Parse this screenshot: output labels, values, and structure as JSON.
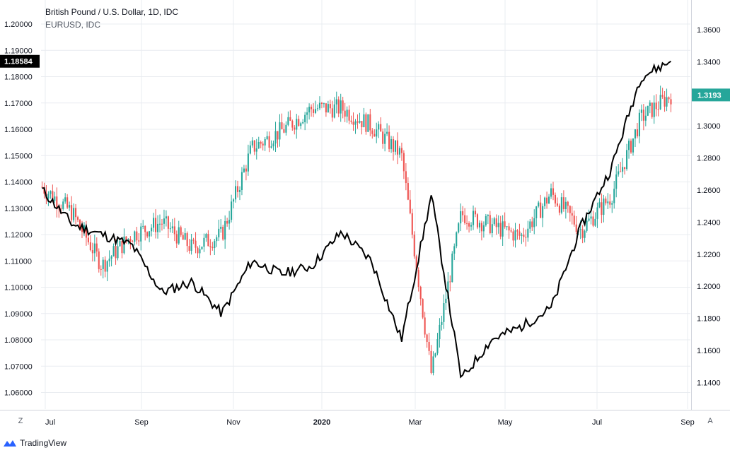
{
  "title": "British Pound / U.S. Dollar, 1D, IDC",
  "subtitle": "EURUSD, IDC",
  "brand": "TradingView",
  "zoom_button": "Z",
  "auto_button": "A",
  "colors": {
    "up": "#26a69a",
    "down": "#ef5350",
    "overlay": "#000000",
    "grid": "#e9ecf0",
    "text": "#131722"
  },
  "chart_data": {
    "type": "line",
    "x_labels": [
      "Jul",
      "Sep",
      "Nov",
      "2020",
      "Mar",
      "May",
      "Jul",
      "Sep"
    ],
    "left_axis": {
      "series": "EURUSD, IDC",
      "ticks": [
        "1.20000",
        "1.19000",
        "1.18000",
        "1.17000",
        "1.16000",
        "1.15000",
        "1.14000",
        "1.13000",
        "1.12000",
        "1.11000",
        "1.10000",
        "1.09000",
        "1.08000",
        "1.07000",
        "1.06000"
      ],
      "last_value": "1.18584",
      "ylim": [
        1.055,
        1.205
      ]
    },
    "right_axis": {
      "series": "British Pound / U.S. Dollar, 1D, IDC",
      "ticks": [
        "1.3600",
        "1.3400",
        "1.3200",
        "1.3000",
        "1.2800",
        "1.2600",
        "1.2400",
        "1.2200",
        "1.2000",
        "1.1800",
        "1.1600",
        "1.1400"
      ],
      "last_value": "1.3193",
      "ylim": [
        1.13,
        1.365
      ]
    },
    "series": [
      {
        "name": "British Pound / U.S. Dollar, 1D, IDC",
        "style": "candlestick",
        "x": [
          "Jul",
          "",
          "",
          "",
          "Sep",
          "",
          "",
          "Nov",
          "",
          "",
          "2020",
          "",
          "Mar",
          "",
          "",
          "May",
          "",
          "",
          "Jul",
          "",
          "",
          "Sep"
        ],
        "close": [
          1.262,
          1.246,
          1.213,
          1.232,
          1.24,
          1.224,
          1.232,
          1.286,
          1.297,
          1.311,
          1.311,
          1.3,
          1.282,
          1.145,
          1.245,
          1.238,
          1.231,
          1.258,
          1.235,
          1.256,
          1.305,
          1.3193
        ]
      },
      {
        "name": "EURUSD, IDC",
        "style": "line",
        "x": [
          "Jul",
          "",
          "",
          "",
          "Sep",
          "",
          "",
          "Nov",
          "",
          "",
          "2020",
          "",
          "Mar",
          "",
          "",
          "May",
          "",
          "",
          "Jul",
          "",
          "",
          "Sep"
        ],
        "values": [
          1.137,
          1.124,
          1.12,
          1.116,
          1.098,
          1.102,
          1.09,
          1.11,
          1.105,
          1.108,
          1.121,
          1.11,
          1.08,
          1.135,
          1.065,
          1.08,
          1.085,
          1.092,
          1.123,
          1.145,
          1.18,
          1.18584
        ]
      }
    ],
    "grid": true
  }
}
